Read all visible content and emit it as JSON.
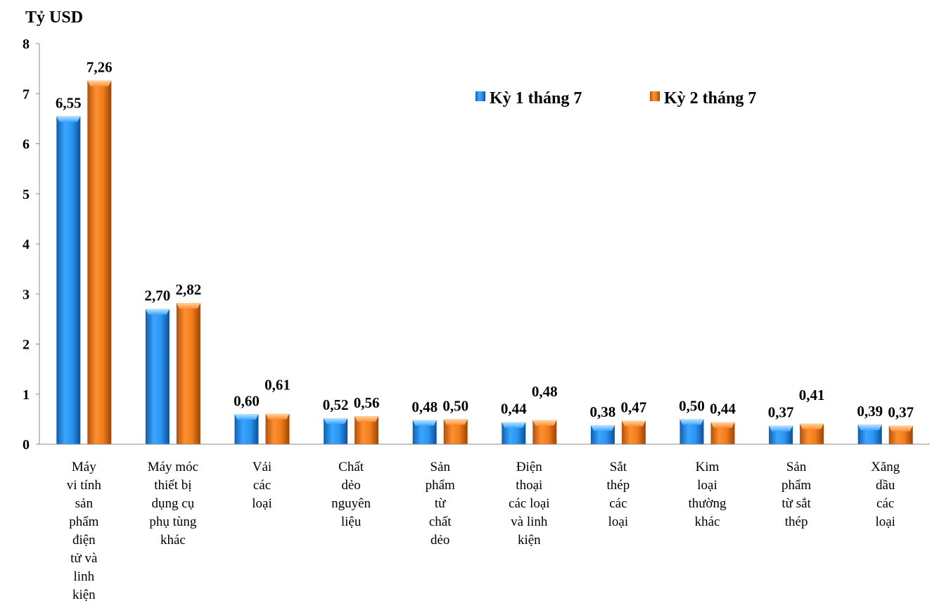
{
  "chart_data": {
    "type": "bar",
    "ylabel": "Tỷ USD",
    "ylim": [
      0,
      8
    ],
    "yticks": [
      0,
      1,
      2,
      3,
      4,
      5,
      6,
      7,
      8
    ],
    "grid": false,
    "legend_position": "top-right",
    "categories": [
      "Máy\nvi tính\nsản\nphẩm\nđiện\ntử và\nlinh\nkiện",
      "Máy móc\nthiết bị\ndụng cụ\nphụ tùng\nkhác",
      "Vải\ncác\nloại",
      "Chất\ndẻo\nnguyên\nliệu",
      "Sản\nphẩm\ntừ\nchất\ndẻo",
      "Điện\nthoại\ncác loại\nvà linh\nkiện",
      "Sắt\nthép\ncác\nloại",
      "Kim\nloại\nthường\nkhác",
      "Sản\nphẩm\ntừ sắt\nthép",
      "Xăng\ndầu\ncác\nloại"
    ],
    "series": [
      {
        "name": "Kỳ 1 tháng 7",
        "color": "#1f8de8",
        "values": [
          6.55,
          2.7,
          0.6,
          0.52,
          0.48,
          0.44,
          0.38,
          0.5,
          0.37,
          0.39
        ],
        "labels": [
          "6,55",
          "2,70",
          "0,60",
          "0,52",
          "0,48",
          "0,44",
          "0,38",
          "0,50",
          "0,37",
          "0,39"
        ]
      },
      {
        "name": "Kỳ 2 tháng 7",
        "color": "#ef7a1a",
        "values": [
          7.26,
          2.82,
          0.61,
          0.56,
          0.5,
          0.48,
          0.47,
          0.44,
          0.41,
          0.37
        ],
        "labels": [
          "7,26",
          "2,82",
          "0,61",
          "0,56",
          "0,50",
          "0,48",
          "0,47",
          "0,44",
          "0,41",
          "0,37"
        ]
      }
    ]
  }
}
